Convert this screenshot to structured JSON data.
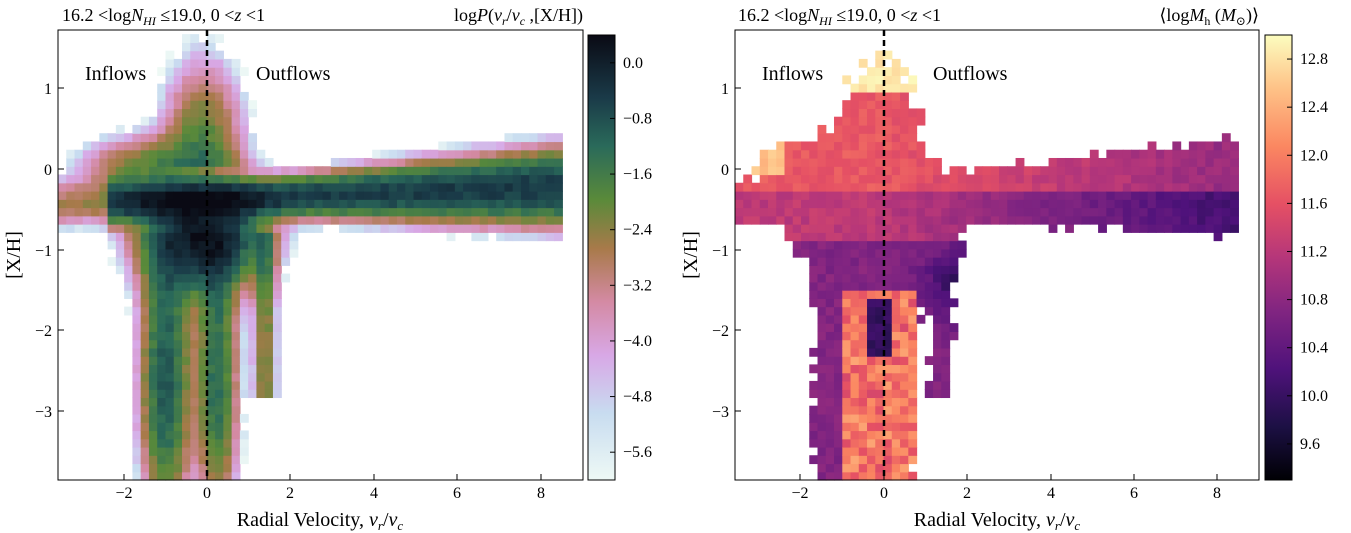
{
  "chart_data": [
    {
      "type": "heatmap",
      "title_left": "16.2 <logN_HI ≤19.0,  0 <z <1",
      "title_left_parts": {
        "pre": "16.2 <log",
        "N": "N",
        "sub": "HI",
        "post": " ≤19.0,  0 <",
        "z": "z",
        "post2": " <1"
      },
      "title_right": "logP(v_r/v_c ,[X/H])",
      "title_right_parts": {
        "pre": "log",
        "P": "P",
        "open": "(",
        "v1": "v",
        "s1": "r",
        "slash": "/",
        "v2": "v",
        "s2": "c",
        "post": " ,[X/H])"
      },
      "xlabel": "Radial Velocity, v_r/v_c",
      "xlabel_parts": {
        "pre": "Radial Velocity, ",
        "v1": "v",
        "s1": "r",
        "slash": "/",
        "v2": "v",
        "s2": "c"
      },
      "ylabel": "[X/H]",
      "xlim": [
        -3.5,
        9.2
      ],
      "ylim": [
        -3.85,
        1.6
      ],
      "xticks": [
        "−2",
        "0",
        "2",
        "4",
        "6",
        "8"
      ],
      "yticks": [
        "1",
        "0",
        "−1",
        "−2",
        "−3"
      ],
      "annotations": [
        "Inflows",
        "Outflows"
      ],
      "vline_x": 0,
      "colormap": "cubehelix_r",
      "colorbar_range": [
        -6.0,
        0.4
      ],
      "colorbar_ticks": [
        "0.0",
        "−0.8",
        "−1.6",
        "−2.4",
        "−3.2",
        "−4.0",
        "−4.8",
        "−5.6"
      ],
      "colorbar_tick_values": [
        0.0,
        -0.8,
        -1.6,
        -2.4,
        -3.2,
        -4.0,
        -4.8,
        -5.6
      ]
    },
    {
      "type": "heatmap",
      "title_left": "16.2 <logN_HI ≤19.0,  0 <z <1",
      "title_left_parts": {
        "pre": "16.2 <log",
        "N": "N",
        "sub": "HI",
        "post": " ≤19.0,  0 <",
        "z": "z",
        "post2": " <1"
      },
      "title_right": "⟨logM_h (M_⊙)⟩",
      "title_right_parts": {
        "open": "⟨log",
        "M": "M",
        "sub": "h",
        "mid": " (",
        "M2": "M",
        "sub2": "⊙",
        "close": ")⟩"
      },
      "xlabel": "Radial Velocity, v_r/v_c",
      "xlabel_parts": {
        "pre": "Radial Velocity, ",
        "v1": "v",
        "s1": "r",
        "slash": "/",
        "v2": "v",
        "s2": "c"
      },
      "ylabel": "[X/H]",
      "xlim": [
        -3.5,
        9.2
      ],
      "ylim": [
        -3.85,
        1.6
      ],
      "xticks": [
        "−2",
        "0",
        "2",
        "4",
        "6",
        "8"
      ],
      "yticks": [
        "1",
        "0",
        "−1",
        "−2",
        "−3"
      ],
      "annotations": [
        "Inflows",
        "Outflows"
      ],
      "vline_x": 0,
      "colormap": "magma",
      "colorbar_range": [
        9.3,
        13.0
      ],
      "colorbar_ticks": [
        "12.8",
        "12.4",
        "12.0",
        "11.6",
        "11.2",
        "10.8",
        "10.4",
        "10.0",
        "9.6"
      ],
      "colorbar_tick_values": [
        12.8,
        12.4,
        12.0,
        11.6,
        11.2,
        10.8,
        10.4,
        10.0,
        9.6
      ]
    }
  ]
}
